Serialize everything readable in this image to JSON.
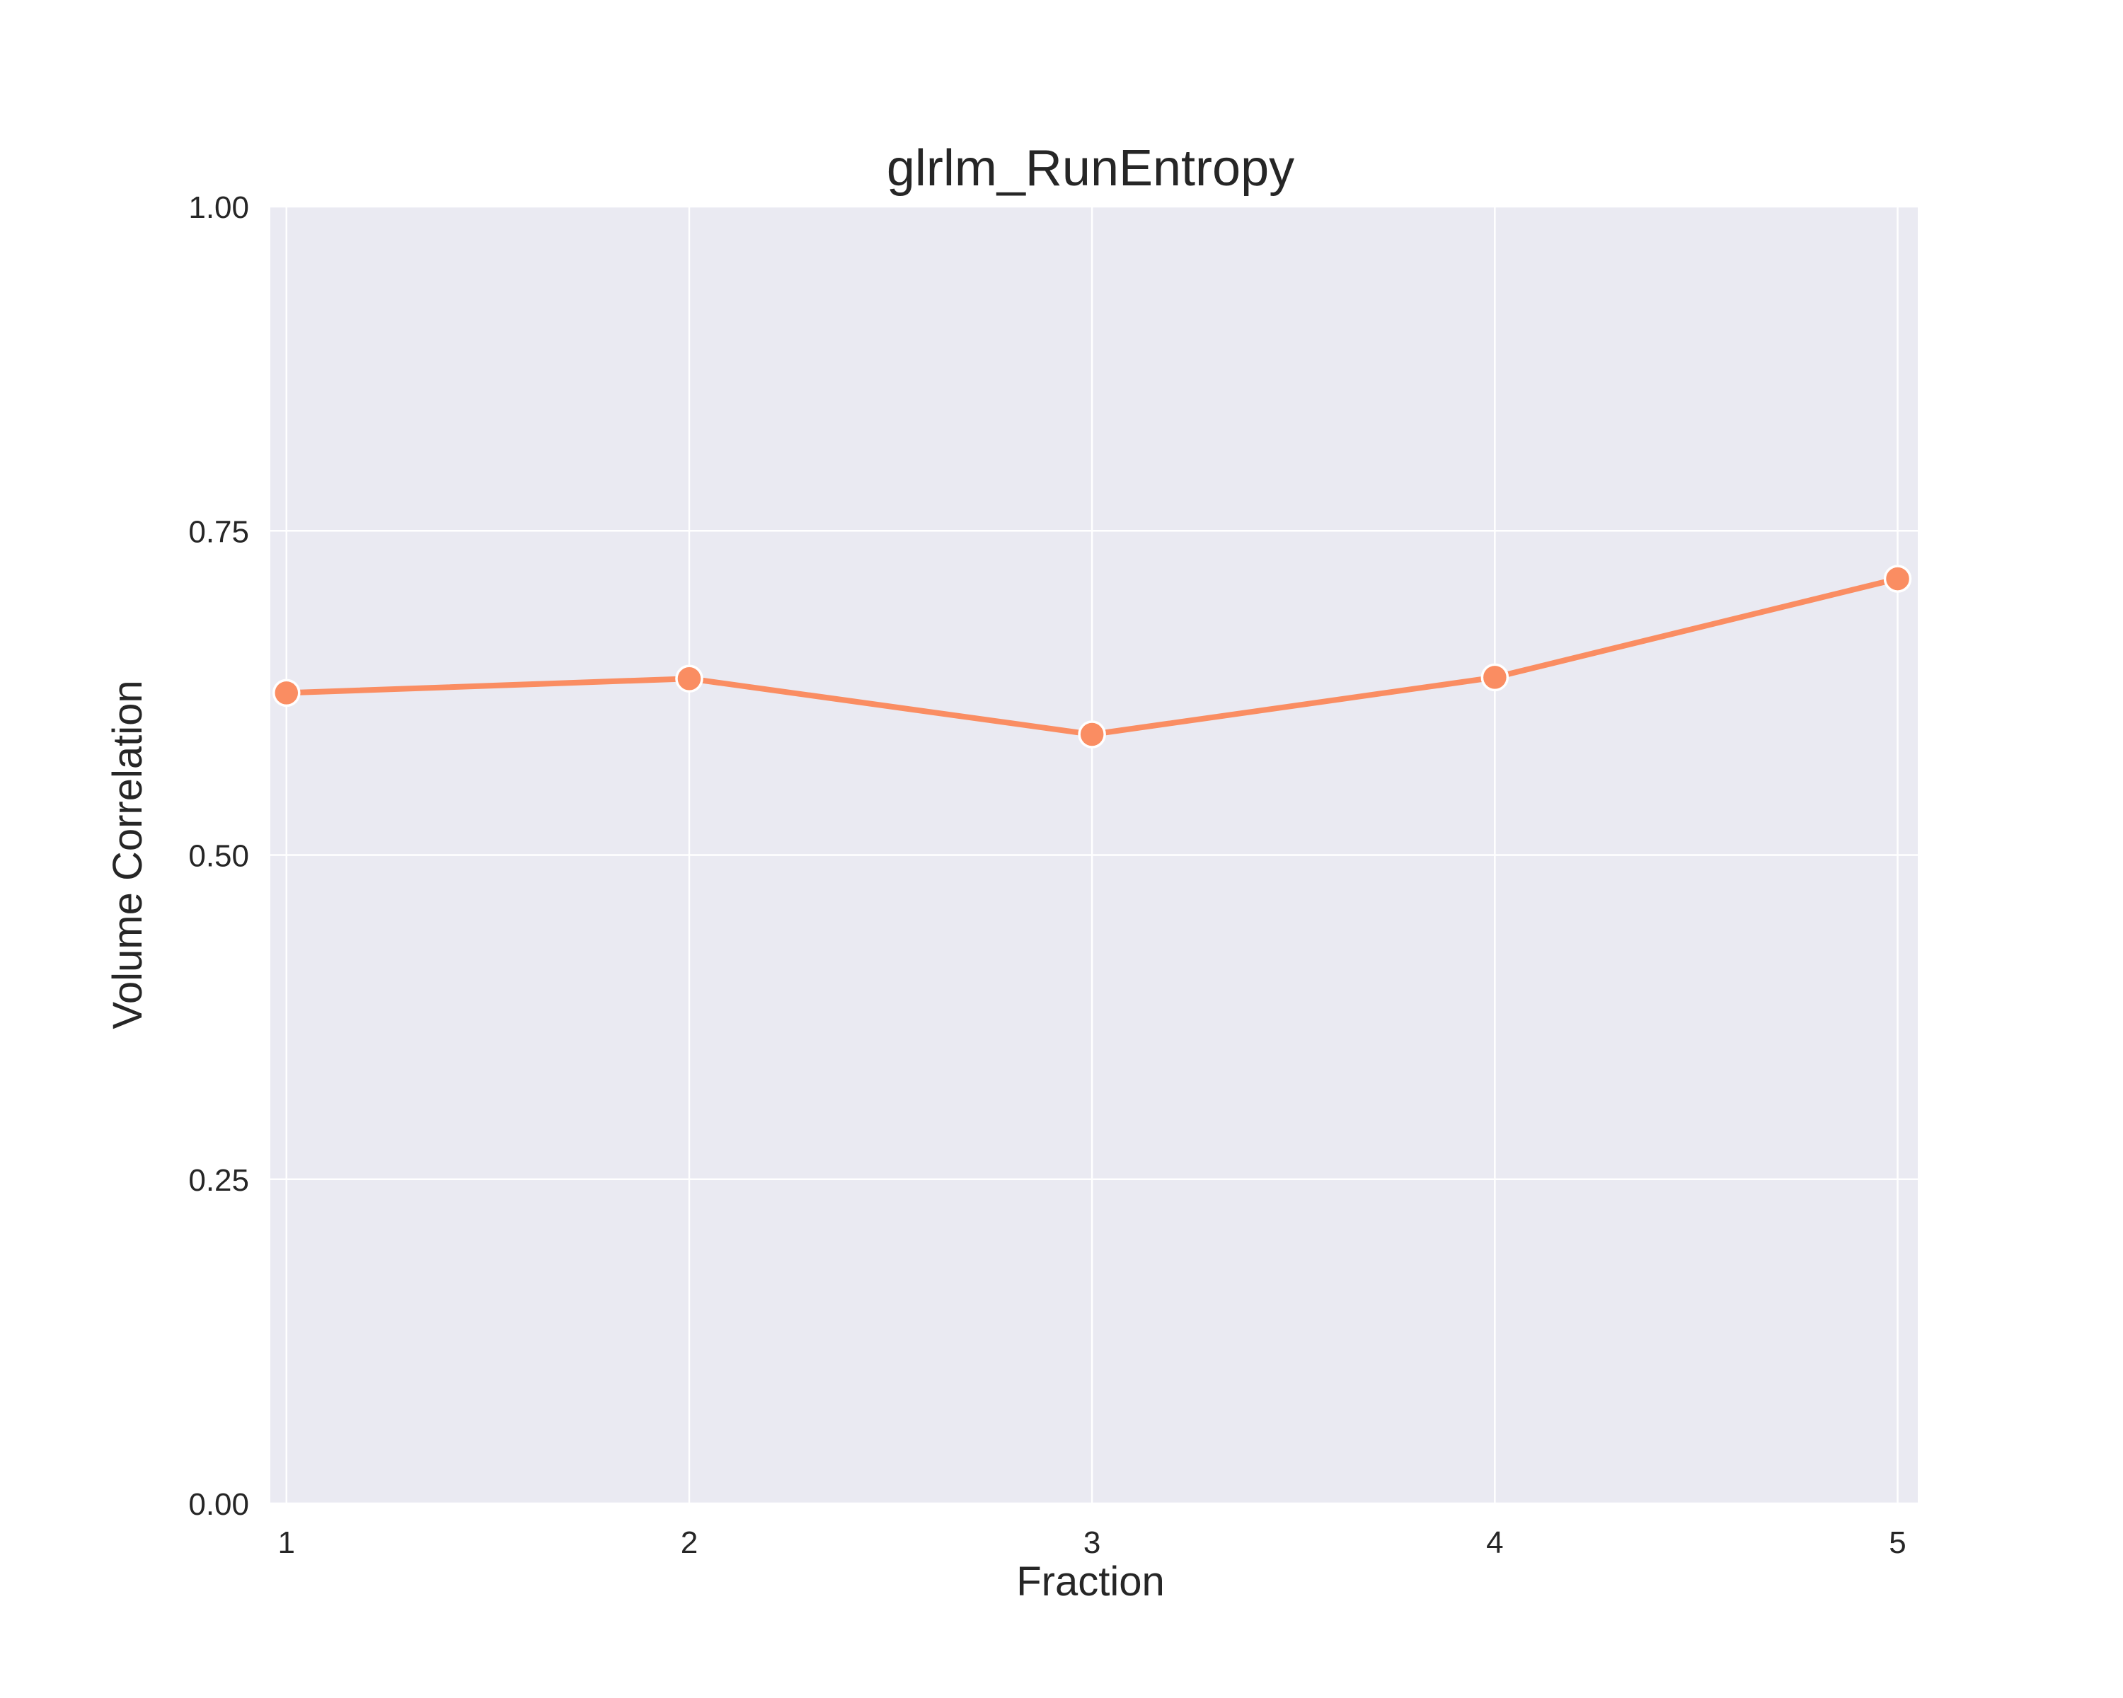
{
  "chart_data": {
    "type": "line",
    "title": "glrlm_RunEntropy",
    "xlabel": "Fraction",
    "ylabel": "Volume Correlation",
    "x": [
      1,
      2,
      3,
      4,
      5
    ],
    "x_tick_labels": [
      "1",
      "2",
      "3",
      "4",
      "5"
    ],
    "y_tick_labels": [
      "0.00",
      "0.25",
      "0.50",
      "0.75",
      "1.00"
    ],
    "y_ticks": [
      0,
      0.25,
      0.5,
      0.75,
      1.0
    ],
    "xlim": [
      0.96,
      5.05
    ],
    "ylim": [
      0,
      1
    ],
    "series": [
      {
        "values": [
          0.625,
          0.636,
          0.593,
          0.637,
          0.713
        ],
        "color": "#fa8d62"
      }
    ],
    "grid": true,
    "legend": "none",
    "style": {
      "plot_background": "#eaeaf2",
      "grid_color": "#ffffff",
      "marker_edge": "#ffffff"
    }
  }
}
